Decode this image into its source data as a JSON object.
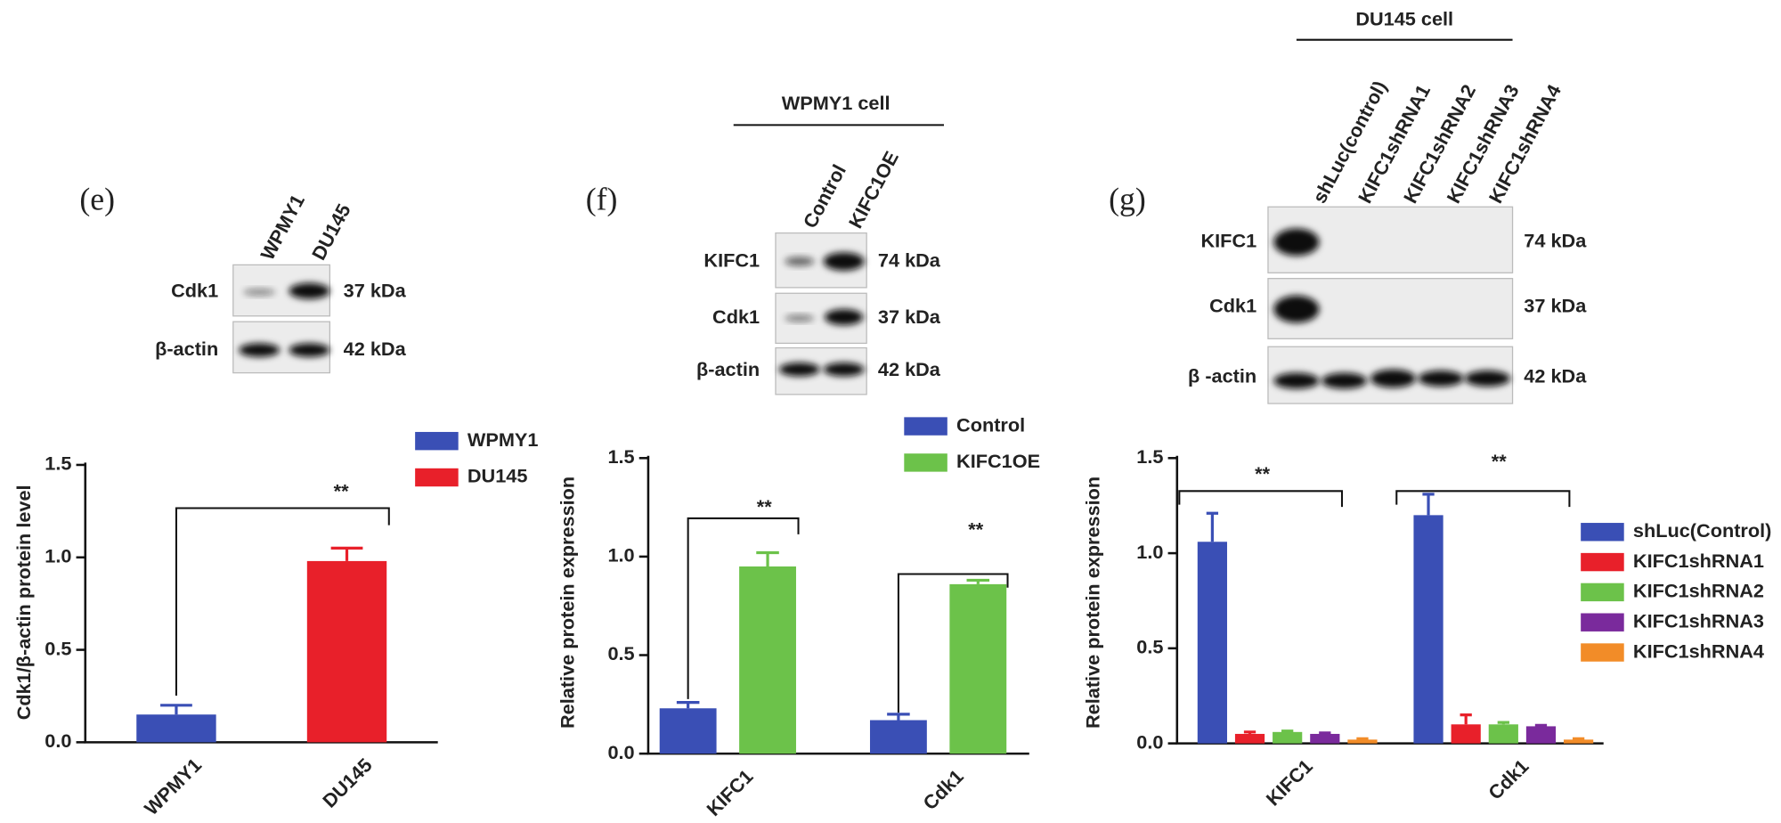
{
  "blots": [
    {
      "panel": "(e)",
      "lanes": [
        "WPMY1",
        "DU145"
      ],
      "rows": [
        {
          "protein": "Cdk1",
          "size": "37  kDa"
        },
        {
          "protein": "β-actin",
          "size": "42  kDa"
        }
      ]
    },
    {
      "panel": "(f)",
      "header": "WPMY1 cell",
      "lanes": [
        "Control",
        "KIFC1OE"
      ],
      "rows": [
        {
          "protein": "KIFC1",
          "size": "74  kDa"
        },
        {
          "protein": "Cdk1",
          "size": "37  kDa"
        },
        {
          "protein": "β-actin",
          "size": "42  kDa"
        }
      ]
    },
    {
      "panel": "(g)",
      "header": "DU145 cell",
      "lanes": [
        "shLuc(control)",
        "KIFC1shRNA1",
        "KIFC1shRNA2",
        "KIFC1shRNA3",
        "KIFC1shRNA4"
      ],
      "rows": [
        {
          "protein": "KIFC1",
          "size": "74 kDa"
        },
        {
          "protein": "Cdk1",
          "size": "37 kDa"
        },
        {
          "protein": "β -actin",
          "size": "42 kDa"
        }
      ]
    }
  ],
  "chart_data": [
    {
      "type": "bar",
      "y_label": "Cdk1/β-actin protein level",
      "categories": [
        "WPMY1",
        "DU145"
      ],
      "values": [
        0.15,
        0.98
      ],
      "errors": [
        0.05,
        0.07
      ],
      "colors": [
        "#3a4fb5",
        "#e8202a"
      ],
      "ylim": [
        0,
        1.5
      ],
      "yticks": [
        {
          "value": 0,
          "label": "0.0"
        },
        0.5,
        {
          "value": 1,
          "label": "1.0"
        },
        1.5
      ],
      "annotations": [
        "**"
      ]
    },
    {
      "type": "grouped_bar",
      "y_label": "Relative protein expression",
      "categories": [
        "KIFC1",
        "Cdk1"
      ],
      "series": [
        {
          "name": "Control",
          "color": "#3a4fb5",
          "values": [
            0.23,
            0.17
          ],
          "errors": [
            0.03,
            0.03
          ]
        },
        {
          "name": "KIFC1OE",
          "color": "#6cc24a",
          "values": [
            0.95,
            0.86
          ],
          "errors": [
            0.07,
            0.02
          ]
        }
      ],
      "ylim": [
        0,
        1.5
      ],
      "yticks": [
        {
          "value": 0,
          "label": "0.0"
        },
        0.5,
        {
          "value": 1,
          "label": "1.0"
        },
        1.5
      ],
      "annotations": [
        "**",
        "**"
      ]
    },
    {
      "type": "grouped_bar",
      "y_label": "Relative protein expression",
      "categories": [
        "KIFC1",
        "Cdk1"
      ],
      "series": [
        {
          "name": "shLuc(Control)",
          "color": "#3a4fb5",
          "values": [
            1.06,
            1.2
          ],
          "errors": [
            0.15,
            0.11
          ]
        },
        {
          "name": "KIFC1shRNA1",
          "color": "#e8202a",
          "values": [
            0.05,
            0.1
          ],
          "errors": [
            0.01,
            0.05
          ]
        },
        {
          "name": "KIFC1shRNA2",
          "color": "#6cc24a",
          "values": [
            0.06,
            0.1
          ],
          "errors": [
            0.005,
            0.01
          ]
        },
        {
          "name": "KIFC1shRNA3",
          "color": "#7a2a9c",
          "values": [
            0.05,
            0.09
          ],
          "errors": [
            0.005,
            0.005
          ]
        },
        {
          "name": "KIFC1shRNA4",
          "color": "#f28c28",
          "values": [
            0.02,
            0.02
          ],
          "errors": [
            0.005,
            0.005
          ]
        }
      ],
      "ylim": [
        0,
        1.5
      ],
      "yticks": [
        {
          "value": 0,
          "label": "0.0"
        },
        0.5,
        {
          "value": 1,
          "label": "1.0"
        },
        1.5
      ],
      "annotations": [
        "**",
        "**"
      ]
    }
  ]
}
